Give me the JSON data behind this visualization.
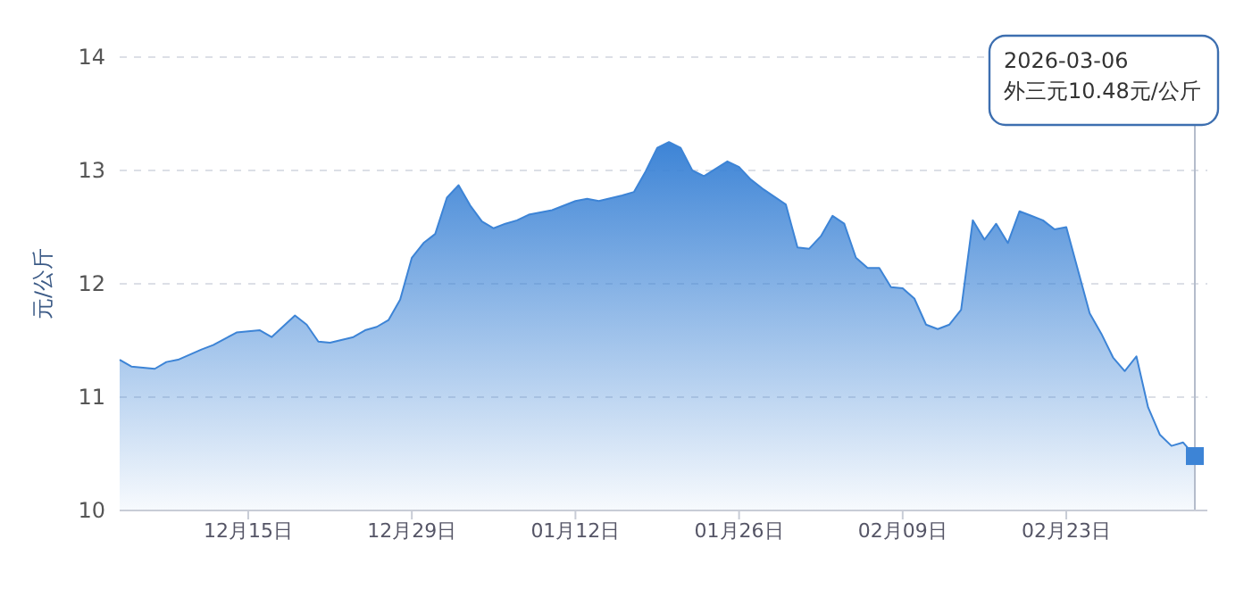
{
  "chart_data": {
    "type": "area",
    "ylabel": "元/公斤",
    "x": [
      "2025-12-04",
      "2025-12-05",
      "2025-12-07",
      "2025-12-08",
      "2025-12-09",
      "2025-12-11",
      "2025-12-12",
      "2025-12-14",
      "2025-12-16",
      "2025-12-17",
      "2025-12-19",
      "2025-12-20",
      "2025-12-21",
      "2025-12-22",
      "2025-12-24",
      "2025-12-25",
      "2025-12-26",
      "2025-12-27",
      "2025-12-28",
      "2025-12-29",
      "2025-12-30",
      "2025-12-31",
      "2026-01-01",
      "2026-01-02",
      "2026-01-03",
      "2026-01-04",
      "2026-01-05",
      "2026-01-06",
      "2026-01-07",
      "2026-01-08",
      "2026-01-10",
      "2026-01-12",
      "2026-01-13",
      "2026-01-14",
      "2026-01-16",
      "2026-01-17",
      "2026-01-18",
      "2026-01-19",
      "2026-01-20",
      "2026-01-21",
      "2026-01-22",
      "2026-01-23",
      "2026-01-25",
      "2026-01-26",
      "2026-01-27",
      "2026-01-28",
      "2026-01-30",
      "2026-01-31",
      "2026-02-01",
      "2026-02-02",
      "2026-02-03",
      "2026-02-04",
      "2026-02-05",
      "2026-02-06",
      "2026-02-07",
      "2026-02-08",
      "2026-02-09",
      "2026-02-10",
      "2026-02-11",
      "2026-02-12",
      "2026-02-13",
      "2026-02-14",
      "2026-02-15",
      "2026-02-16",
      "2026-02-17",
      "2026-02-18",
      "2026-02-19",
      "2026-02-20",
      "2026-02-21",
      "2026-02-22",
      "2026-02-23",
      "2026-02-25",
      "2026-02-26",
      "2026-02-27",
      "2026-02-28",
      "2026-03-01",
      "2026-03-02",
      "2026-03-03",
      "2026-03-04",
      "2026-03-05",
      "2026-03-06"
    ],
    "series": [
      {
        "color": "#3d84d6",
        "values": [
          11.33,
          11.27,
          11.25,
          11.31,
          11.33,
          11.42,
          11.46,
          11.57,
          11.59,
          11.53,
          11.72,
          11.64,
          11.49,
          11.48,
          11.53,
          11.59,
          11.62,
          11.68,
          11.86,
          12.23,
          12.36,
          12.44,
          12.76,
          12.87,
          12.69,
          12.55,
          12.49,
          12.53,
          12.56,
          12.61,
          12.65,
          12.73,
          12.75,
          12.73,
          12.78,
          12.81,
          12.99,
          13.2,
          13.25,
          13.2,
          13.0,
          12.95,
          13.08,
          13.03,
          12.92,
          12.84,
          12.7,
          12.32,
          12.31,
          12.42,
          12.6,
          12.53,
          12.23,
          12.14,
          12.14,
          11.97,
          11.96,
          11.87,
          11.64,
          11.6,
          11.64,
          11.77,
          12.56,
          12.39,
          12.53,
          12.36,
          12.64,
          12.6,
          12.56,
          12.48,
          12.5,
          11.74,
          11.56,
          11.35,
          11.23,
          11.36,
          10.91,
          10.67,
          10.57,
          10.6,
          10.48
        ]
      }
    ],
    "xlim": [
      "2025-12-04",
      "2026-03-06"
    ],
    "xticks": [
      {
        "value": "2025-12-15",
        "label": "12月15日"
      },
      {
        "value": "2025-12-29",
        "label": "12月29日"
      },
      {
        "value": "2026-01-12",
        "label": "01月12日"
      },
      {
        "value": "2026-01-26",
        "label": "01月26日"
      },
      {
        "value": "2026-02-09",
        "label": "02月09日"
      },
      {
        "value": "2026-02-23",
        "label": "02月23日"
      }
    ],
    "ylim": [
      10,
      14
    ],
    "yticks": [
      10,
      11,
      12,
      13,
      14
    ],
    "grid": "y",
    "marker": "none",
    "line_style": "solid",
    "ref_lines": [
      {
        "axis": "x",
        "value": "2026-03-06",
        "color": "#b4bccb"
      }
    ],
    "annotations": [
      "2026-03-06\n外三元10.48元/公斤"
    ]
  }
}
